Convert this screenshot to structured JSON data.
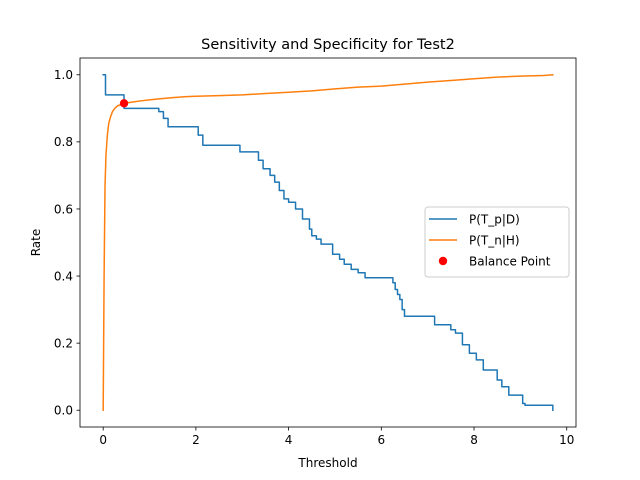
{
  "chart_data": {
    "type": "line",
    "title": "Sensitivity and Specificity for Test2",
    "xlabel": "Threshold",
    "ylabel": "Rate",
    "xlim": [
      -0.5,
      10.2
    ],
    "ylim": [
      -0.05,
      1.05
    ],
    "xticks": [
      0,
      2,
      4,
      6,
      8,
      10
    ],
    "xtick_labels": [
      "0",
      "2",
      "4",
      "6",
      "8",
      "10"
    ],
    "yticks": [
      0.0,
      0.2,
      0.4,
      0.6,
      0.8,
      1.0
    ],
    "ytick_labels": [
      "0.0",
      "0.2",
      "0.4",
      "0.6",
      "0.8",
      "1.0"
    ],
    "grid": false,
    "legend_position": "center-right",
    "series": [
      {
        "name": "P(T_p|D)",
        "color": "#1f77b4",
        "step": true,
        "x": [
          0.0,
          0.05,
          0.3,
          0.45,
          0.9,
          1.2,
          1.3,
          1.4,
          1.95,
          2.05,
          2.15,
          2.7,
          2.95,
          3.35,
          3.45,
          3.6,
          3.7,
          3.8,
          3.9,
          4.0,
          4.15,
          4.3,
          4.45,
          4.5,
          4.6,
          4.7,
          4.95,
          5.1,
          5.2,
          5.35,
          5.5,
          5.65,
          5.75,
          6.25,
          6.3,
          6.35,
          6.4,
          6.45,
          6.5,
          7.15,
          7.5,
          7.6,
          7.75,
          7.9,
          8.05,
          8.2,
          8.5,
          8.6,
          8.75,
          9.05,
          9.1,
          9.6,
          9.7
        ],
        "values": [
          1.0,
          0.94,
          0.94,
          0.9,
          0.9,
          0.89,
          0.87,
          0.845,
          0.845,
          0.82,
          0.79,
          0.79,
          0.77,
          0.745,
          0.72,
          0.7,
          0.68,
          0.655,
          0.63,
          0.62,
          0.6,
          0.57,
          0.54,
          0.52,
          0.51,
          0.495,
          0.465,
          0.45,
          0.435,
          0.42,
          0.41,
          0.395,
          0.395,
          0.38,
          0.36,
          0.345,
          0.33,
          0.3,
          0.28,
          0.255,
          0.24,
          0.23,
          0.195,
          0.17,
          0.15,
          0.12,
          0.09,
          0.07,
          0.045,
          0.02,
          0.015,
          0.015,
          0.0
        ]
      },
      {
        "name": "P(T_n|H)",
        "color": "#ff7f0e",
        "step": false,
        "x": [
          0.0,
          0.02,
          0.04,
          0.06,
          0.09,
          0.12,
          0.16,
          0.2,
          0.25,
          0.32,
          0.4,
          0.45,
          0.6,
          0.8,
          1.0,
          1.2,
          1.5,
          1.8,
          2.0,
          2.5,
          3.0,
          3.5,
          4.0,
          4.5,
          5.0,
          5.5,
          6.0,
          6.5,
          7.0,
          7.5,
          8.0,
          8.5,
          9.0,
          9.5,
          9.7
        ],
        "values": [
          0.0,
          0.4,
          0.67,
          0.76,
          0.82,
          0.855,
          0.875,
          0.89,
          0.9,
          0.908,
          0.912,
          0.915,
          0.918,
          0.922,
          0.925,
          0.928,
          0.932,
          0.935,
          0.936,
          0.938,
          0.94,
          0.944,
          0.948,
          0.952,
          0.958,
          0.963,
          0.966,
          0.972,
          0.978,
          0.983,
          0.988,
          0.993,
          0.996,
          0.998,
          1.0
        ]
      }
    ],
    "points": [
      {
        "name": "Balance Point",
        "x": 0.45,
        "y": 0.915,
        "color": "#ff0000"
      }
    ]
  }
}
